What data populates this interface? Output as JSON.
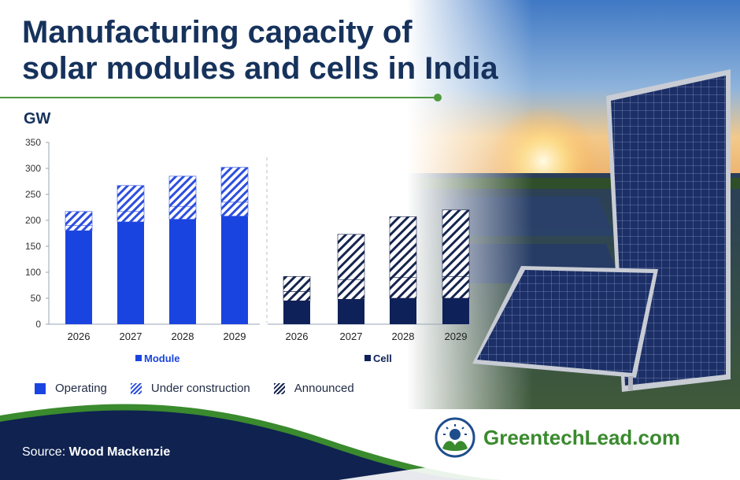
{
  "header": {
    "title_line1": "Manufacturing capacity of",
    "title_line2": "solar modules and cells in India"
  },
  "unit_label": "GW",
  "legend": {
    "operating": "Operating",
    "under_construction": "Under construction",
    "announced": "Announced"
  },
  "footer": {
    "source_prefix": "Source:",
    "source_name": "Wood Mackenzie",
    "brand": "GreentechLead.com"
  },
  "colors": {
    "title": "#16325c",
    "module_operating": "#1a44e0",
    "module_pattern": "#2c4ee0",
    "cell_operating": "#0f2159",
    "cell_pattern": "#16244f",
    "accent_green": "#4e9a3c",
    "footer_navy": "#0f2250"
  },
  "icons": [
    "logo-leaf-sun-icon"
  ],
  "chart_data": {
    "type": "bar",
    "stacked": true,
    "ylabel": "GW",
    "ylim": [
      0,
      350
    ],
    "yticks": [
      0,
      50,
      100,
      150,
      200,
      250,
      300,
      350
    ],
    "grid": false,
    "legend_placement": "bottom",
    "panels": [
      {
        "name": "Module",
        "categories": [
          "2026",
          "2027",
          "2028",
          "2029"
        ],
        "series": [
          {
            "name": "Operating",
            "values": [
              180,
              197,
              202,
              208
            ]
          },
          {
            "name": "Under construction",
            "values": [
              10,
              20,
              25,
              27
            ]
          },
          {
            "name": "Announced",
            "values": [
              27,
              50,
              58,
              67
            ]
          }
        ]
      },
      {
        "name": "Cell",
        "categories": [
          "2026",
          "2027",
          "2028",
          "2029"
        ],
        "series": [
          {
            "name": "Operating",
            "values": [
              45,
              48,
              50,
              50
            ]
          },
          {
            "name": "Under construction",
            "values": [
              18,
              38,
              40,
              42
            ]
          },
          {
            "name": "Announced",
            "values": [
              29,
              87,
              117,
              128
            ]
          }
        ]
      }
    ]
  }
}
